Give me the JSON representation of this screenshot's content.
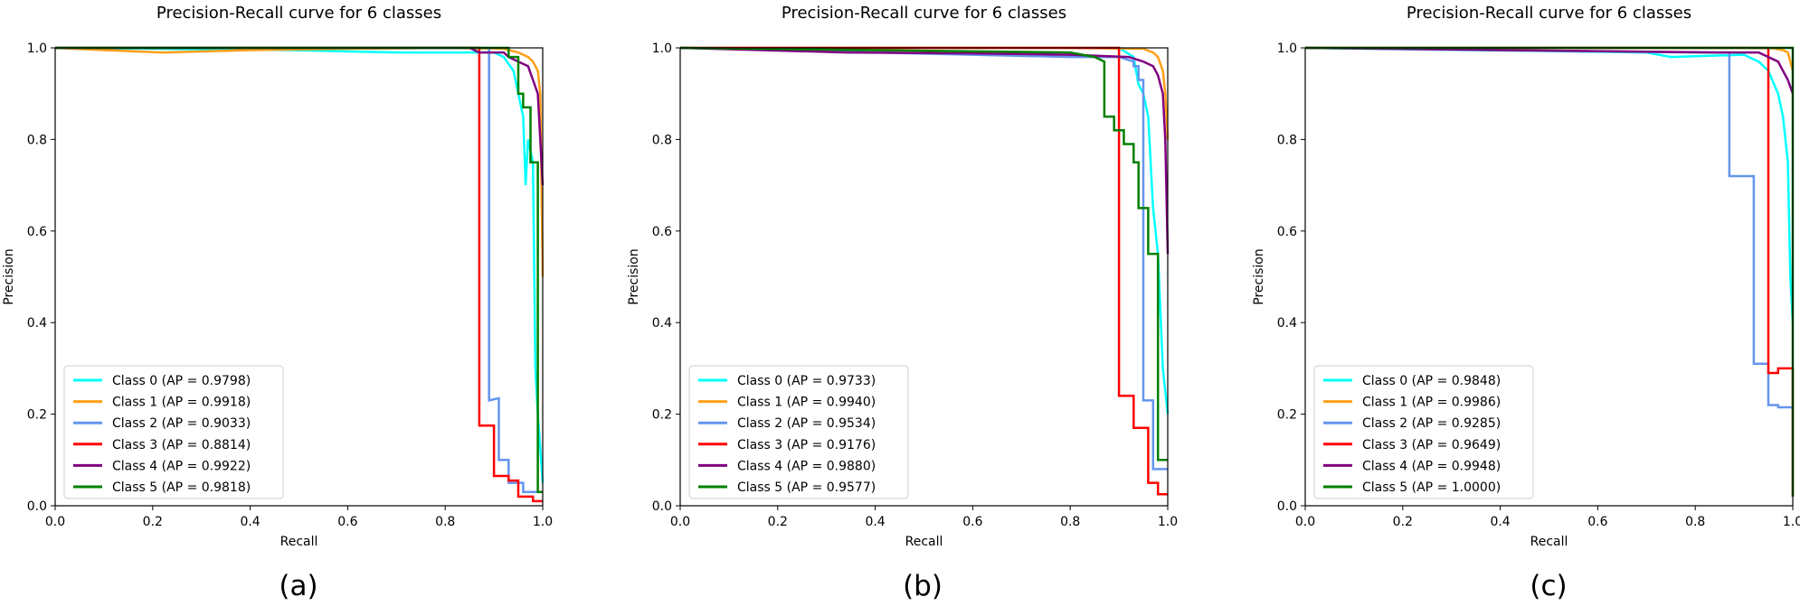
{
  "figure": {
    "captions": [
      "(a)",
      "(b)",
      "(c)"
    ]
  },
  "colors": [
    "#00ffff",
    "#ff9f1a",
    "#6495ed",
    "#ff0000",
    "#800080",
    "#008000"
  ],
  "chart_data": [
    {
      "type": "line",
      "title": "Precision-Recall curve for 6 classes",
      "xlabel": "Recall",
      "ylabel": "Precision",
      "xlim": [
        0.0,
        1.0
      ],
      "ylim": [
        0.0,
        1.0
      ],
      "xticks": [
        "0.0",
        "0.2",
        "0.4",
        "0.6",
        "0.8",
        "1.0"
      ],
      "yticks": [
        "0.0",
        "0.2",
        "0.4",
        "0.6",
        "0.8",
        "1.0"
      ],
      "legend_position": "lower-left",
      "series": [
        {
          "name": "Class 0 (AP = 0.9798)",
          "points": [
            [
              0,
              1.0
            ],
            [
              0.48,
              0.995
            ],
            [
              0.7,
              0.99
            ],
            [
              0.9,
              0.99
            ],
            [
              0.92,
              0.98
            ],
            [
              0.94,
              0.95
            ],
            [
              0.96,
              0.85
            ],
            [
              0.965,
              0.7
            ],
            [
              0.97,
              0.8
            ],
            [
              0.98,
              0.75
            ],
            [
              0.985,
              0.3
            ],
            [
              0.99,
              0.2
            ],
            [
              1.0,
              0.05
            ]
          ]
        },
        {
          "name": "Class 1 (AP = 0.9918)",
          "points": [
            [
              0,
              1.0
            ],
            [
              0.1,
              0.995
            ],
            [
              0.22,
              0.99
            ],
            [
              0.4,
              0.995
            ],
            [
              0.6,
              0.998
            ],
            [
              0.8,
              1.0
            ],
            [
              0.92,
              0.998
            ],
            [
              0.95,
              0.99
            ],
            [
              0.97,
              0.98
            ],
            [
              0.98,
              0.97
            ],
            [
              0.99,
              0.95
            ],
            [
              0.995,
              0.9
            ],
            [
              1.0,
              0.5
            ]
          ]
        },
        {
          "name": "Class 2 (AP = 0.9033)",
          "points": [
            [
              0,
              1.0
            ],
            [
              0.85,
              1.0
            ],
            [
              0.89,
              1.0
            ],
            [
              0.89,
              0.23
            ],
            [
              0.91,
              0.235
            ],
            [
              0.91,
              0.1
            ],
            [
              0.93,
              0.1
            ],
            [
              0.93,
              0.05
            ],
            [
              0.96,
              0.05
            ],
            [
              0.96,
              0.03
            ],
            [
              1.0,
              0.03
            ]
          ]
        },
        {
          "name": "Class 3 (AP = 0.8814)",
          "points": [
            [
              0,
              1.0
            ],
            [
              0.87,
              1.0
            ],
            [
              0.87,
              0.175
            ],
            [
              0.9,
              0.175
            ],
            [
              0.9,
              0.065
            ],
            [
              0.93,
              0.065
            ],
            [
              0.93,
              0.055
            ],
            [
              0.95,
              0.055
            ],
            [
              0.95,
              0.02
            ],
            [
              0.98,
              0.02
            ],
            [
              0.98,
              0.01
            ],
            [
              1.0,
              0.01
            ]
          ]
        },
        {
          "name": "Class 4 (AP = 0.9922)",
          "points": [
            [
              0,
              1.0
            ],
            [
              0.85,
              1.0
            ],
            [
              0.87,
              0.99
            ],
            [
              0.92,
              0.99
            ],
            [
              0.93,
              0.98
            ],
            [
              0.95,
              0.97
            ],
            [
              0.97,
              0.96
            ],
            [
              0.98,
              0.93
            ],
            [
              0.99,
              0.9
            ],
            [
              0.995,
              0.8
            ],
            [
              1.0,
              0.7
            ]
          ]
        },
        {
          "name": "Class 5 (AP = 0.9818)",
          "points": [
            [
              0,
              1.0
            ],
            [
              0.93,
              1.0
            ],
            [
              0.93,
              0.98
            ],
            [
              0.95,
              0.98
            ],
            [
              0.95,
              0.9
            ],
            [
              0.96,
              0.9
            ],
            [
              0.96,
              0.87
            ],
            [
              0.975,
              0.87
            ],
            [
              0.975,
              0.75
            ],
            [
              0.99,
              0.75
            ],
            [
              0.99,
              0.03
            ],
            [
              1.0,
              0.03
            ]
          ]
        }
      ]
    },
    {
      "type": "line",
      "title": "Precision-Recall curve for 6 classes",
      "xlabel": "Recall",
      "ylabel": "Precision",
      "xlim": [
        0.0,
        1.0
      ],
      "ylim": [
        0.0,
        1.0
      ],
      "xticks": [
        "0.0",
        "0.2",
        "0.4",
        "0.6",
        "0.8",
        "1.0"
      ],
      "yticks": [
        "0.0",
        "0.2",
        "0.4",
        "0.6",
        "0.8",
        "1.0"
      ],
      "legend_position": "lower-left",
      "series": [
        {
          "name": "Class 0 (AP = 0.9733)",
          "points": [
            [
              0,
              1.0
            ],
            [
              0.9,
              1.0
            ],
            [
              0.93,
              0.98
            ],
            [
              0.94,
              0.92
            ],
            [
              0.95,
              0.9
            ],
            [
              0.96,
              0.85
            ],
            [
              0.965,
              0.75
            ],
            [
              0.97,
              0.65
            ],
            [
              0.98,
              0.55
            ],
            [
              0.99,
              0.3
            ],
            [
              1.0,
              0.2
            ]
          ]
        },
        {
          "name": "Class 1 (AP = 0.9940)",
          "points": [
            [
              0,
              1.0
            ],
            [
              0.8,
              1.0
            ],
            [
              0.95,
              0.998
            ],
            [
              0.97,
              0.99
            ],
            [
              0.98,
              0.98
            ],
            [
              0.99,
              0.95
            ],
            [
              0.995,
              0.9
            ],
            [
              1.0,
              0.8
            ]
          ]
        },
        {
          "name": "Class 2 (AP = 0.9534)",
          "points": [
            [
              0,
              1.0
            ],
            [
              0.4,
              0.99
            ],
            [
              0.6,
              0.985
            ],
            [
              0.8,
              0.98
            ],
            [
              0.9,
              0.98
            ],
            [
              0.93,
              0.97
            ],
            [
              0.93,
              0.96
            ],
            [
              0.94,
              0.96
            ],
            [
              0.94,
              0.93
            ],
            [
              0.95,
              0.93
            ],
            [
              0.95,
              0.23
            ],
            [
              0.97,
              0.23
            ],
            [
              0.97,
              0.08
            ],
            [
              1.0,
              0.08
            ]
          ]
        },
        {
          "name": "Class 3 (AP = 0.9176)",
          "points": [
            [
              0,
              1.0
            ],
            [
              0.9,
              1.0
            ],
            [
              0.9,
              0.24
            ],
            [
              0.93,
              0.24
            ],
            [
              0.93,
              0.17
            ],
            [
              0.96,
              0.17
            ],
            [
              0.96,
              0.05
            ],
            [
              0.98,
              0.05
            ],
            [
              0.98,
              0.025
            ],
            [
              1.0,
              0.025
            ]
          ]
        },
        {
          "name": "Class 4 (AP = 0.9880)",
          "points": [
            [
              0,
              1.0
            ],
            [
              0.34,
              0.99
            ],
            [
              0.6,
              0.988
            ],
            [
              0.8,
              0.985
            ],
            [
              0.92,
              0.98
            ],
            [
              0.95,
              0.97
            ],
            [
              0.97,
              0.96
            ],
            [
              0.98,
              0.94
            ],
            [
              0.99,
              0.9
            ],
            [
              0.995,
              0.8
            ],
            [
              1.0,
              0.55
            ]
          ]
        },
        {
          "name": "Class 5 (AP = 0.9577)",
          "points": [
            [
              0,
              1.0
            ],
            [
              0.8,
              0.99
            ],
            [
              0.85,
              0.98
            ],
            [
              0.87,
              0.97
            ],
            [
              0.87,
              0.85
            ],
            [
              0.89,
              0.85
            ],
            [
              0.89,
              0.82
            ],
            [
              0.91,
              0.82
            ],
            [
              0.91,
              0.79
            ],
            [
              0.93,
              0.79
            ],
            [
              0.93,
              0.75
            ],
            [
              0.94,
              0.75
            ],
            [
              0.94,
              0.65
            ],
            [
              0.96,
              0.65
            ],
            [
              0.96,
              0.55
            ],
            [
              0.98,
              0.55
            ],
            [
              0.98,
              0.1
            ],
            [
              1.0,
              0.1
            ]
          ]
        }
      ]
    },
    {
      "type": "line",
      "title": "Precision-Recall curve for 6 classes",
      "xlabel": "Recall",
      "ylabel": "Precision",
      "xlim": [
        0.0,
        1.0
      ],
      "ylim": [
        0.0,
        1.0
      ],
      "xticks": [
        "0.0",
        "0.2",
        "0.4",
        "0.6",
        "0.8",
        "1.0"
      ],
      "yticks": [
        "0.0",
        "0.2",
        "0.4",
        "0.6",
        "0.8",
        "1.0"
      ],
      "legend_position": "lower-left",
      "series": [
        {
          "name": "Class 0 (AP = 0.9848)",
          "points": [
            [
              0,
              1.0
            ],
            [
              0.7,
              0.99
            ],
            [
              0.75,
              0.98
            ],
            [
              0.9,
              0.985
            ],
            [
              0.93,
              0.97
            ],
            [
              0.95,
              0.95
            ],
            [
              0.97,
              0.9
            ],
            [
              0.98,
              0.85
            ],
            [
              0.99,
              0.75
            ],
            [
              0.995,
              0.5
            ],
            [
              1.0,
              0.4
            ]
          ]
        },
        {
          "name": "Class 1 (AP = 0.9986)",
          "points": [
            [
              0,
              1.0
            ],
            [
              0.9,
              1.0
            ],
            [
              0.96,
              0.999
            ],
            [
              0.98,
              0.995
            ],
            [
              0.99,
              0.99
            ],
            [
              1.0,
              0.95
            ]
          ]
        },
        {
          "name": "Class 2 (AP = 0.9285)",
          "points": [
            [
              0,
              1.0
            ],
            [
              0.8,
              0.99
            ],
            [
              0.87,
              0.99
            ],
            [
              0.87,
              0.72
            ],
            [
              0.92,
              0.72
            ],
            [
              0.92,
              0.31
            ],
            [
              0.95,
              0.31
            ],
            [
              0.95,
              0.22
            ],
            [
              0.97,
              0.22
            ],
            [
              0.97,
              0.215
            ],
            [
              1.0,
              0.215
            ]
          ]
        },
        {
          "name": "Class 3 (AP = 0.9649)",
          "points": [
            [
              0,
              1.0
            ],
            [
              0.95,
              1.0
            ],
            [
              0.95,
              0.29
            ],
            [
              0.97,
              0.29
            ],
            [
              0.97,
              0.3
            ],
            [
              1.0,
              0.3
            ],
            [
              1.0,
              0.02
            ]
          ]
        },
        {
          "name": "Class 4 (AP = 0.9948)",
          "points": [
            [
              0,
              1.0
            ],
            [
              0.85,
              0.99
            ],
            [
              0.93,
              0.99
            ],
            [
              0.95,
              0.98
            ],
            [
              0.97,
              0.97
            ],
            [
              0.98,
              0.95
            ],
            [
              0.99,
              0.93
            ],
            [
              1.0,
              0.9
            ]
          ]
        },
        {
          "name": "Class 5 (AP = 1.0000)",
          "points": [
            [
              0,
              1.0
            ],
            [
              1.0,
              1.0
            ],
            [
              1.0,
              0.02
            ]
          ]
        }
      ]
    }
  ]
}
